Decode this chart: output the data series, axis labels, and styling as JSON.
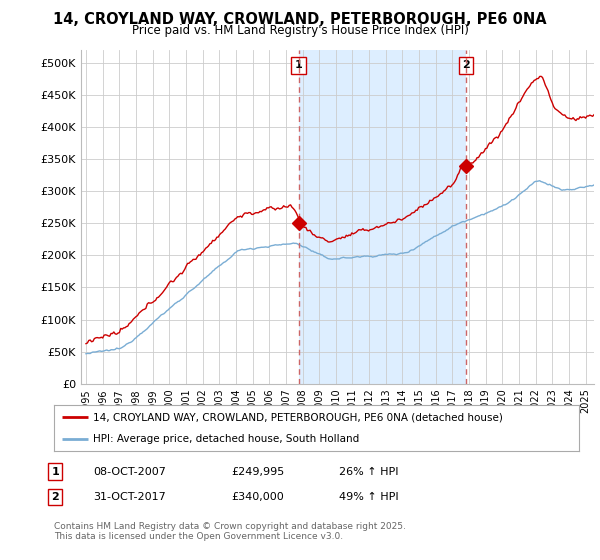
{
  "title": "14, CROYLAND WAY, CROWLAND, PETERBOROUGH, PE6 0NA",
  "subtitle": "Price paid vs. HM Land Registry's House Price Index (HPI)",
  "legend_label_red": "14, CROYLAND WAY, CROWLAND, PETERBOROUGH, PE6 0NA (detached house)",
  "legend_label_blue": "HPI: Average price, detached house, South Holland",
  "footnote": "Contains HM Land Registry data © Crown copyright and database right 2025.\nThis data is licensed under the Open Government Licence v3.0.",
  "annotations": [
    {
      "label": "1",
      "x_year": 2007.77,
      "price": 249995,
      "text": "08-OCT-2007",
      "amount": "£249,995",
      "pct": "26% ↑ HPI"
    },
    {
      "label": "2",
      "x_year": 2017.83,
      "price": 340000,
      "text": "31-OCT-2017",
      "amount": "£340,000",
      "pct": "49% ↑ HPI"
    }
  ],
  "y_ticks": [
    0,
    50000,
    100000,
    150000,
    200000,
    250000,
    300000,
    350000,
    400000,
    450000,
    500000
  ],
  "y_tick_labels": [
    "£0",
    "£50K",
    "£100K",
    "£150K",
    "£200K",
    "£250K",
    "£300K",
    "£350K",
    "£400K",
    "£450K",
    "£500K"
  ],
  "ylim": [
    0,
    520000
  ],
  "xlim_start": 1994.7,
  "xlim_end": 2025.5,
  "red_color": "#cc0000",
  "blue_color": "#7aadd4",
  "shade_color": "#ddeeff",
  "dashed_color": "#cc6666",
  "background_color": "#ffffff",
  "grid_color": "#cccccc"
}
